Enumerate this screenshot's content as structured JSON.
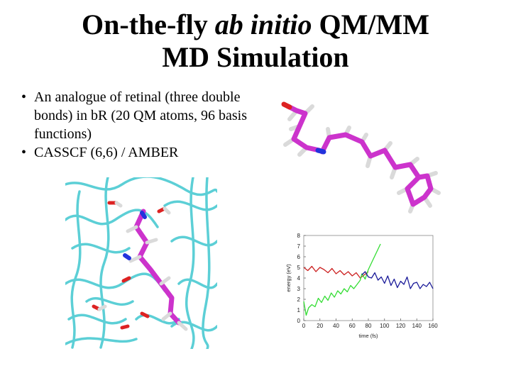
{
  "slide": {
    "title_line1_pre": "On-the-fly ",
    "title_line1_italic": "ab initio",
    "title_line1_post": " QM/MM",
    "title_line2": "MD Simulation",
    "bullets": [
      "An analogue of retinal (three double bonds) in bR (20 QM atoms, 96 basis functions)",
      "CASSCF (6,6) / AMBER"
    ],
    "bullet_symbol": "•"
  },
  "colors": {
    "carbon": "#cc33cc",
    "hydrogen": "#e6e6e6",
    "nitrogen": "#2233dd",
    "oxygen": "#dd2222",
    "protein_ribbon": "#5ccfd6",
    "series_red": "#cc2222",
    "series_green": "#33dd33",
    "series_blue": "#1a1a99"
  },
  "chart_data": {
    "type": "line",
    "title": "",
    "xlabel": "time (fs)",
    "ylabel": "energy (eV)",
    "xlim": [
      0,
      160
    ],
    "ylim": [
      0,
      8
    ],
    "xticks": [
      0,
      20,
      40,
      60,
      80,
      100,
      120,
      140,
      160
    ],
    "yticks": [
      0,
      1,
      2,
      3,
      4,
      5,
      6,
      7,
      8
    ],
    "grid": false,
    "legend": "none",
    "series": [
      {
        "color": "#cc2222",
        "x": [
          0,
          5,
          10,
          15,
          20,
          25,
          30,
          35,
          40,
          45,
          50,
          55,
          60,
          65,
          70,
          75,
          80
        ],
        "y": [
          5.0,
          4.7,
          5.1,
          4.6,
          5.0,
          4.8,
          4.5,
          4.9,
          4.4,
          4.7,
          4.3,
          4.6,
          4.2,
          4.5,
          4.0,
          4.3,
          4.6
        ]
      },
      {
        "color": "#33dd33",
        "x": [
          0,
          3,
          6,
          10,
          14,
          18,
          22,
          26,
          30,
          34,
          38,
          42,
          46,
          50,
          54,
          58,
          62,
          66,
          70,
          72,
          76,
          80,
          85,
          90,
          95
        ],
        "y": [
          1.8,
          0.5,
          1.2,
          1.5,
          1.3,
          2.1,
          1.7,
          2.3,
          1.9,
          2.6,
          2.2,
          2.8,
          2.5,
          3.0,
          2.7,
          3.3,
          3.0,
          3.4,
          3.8,
          4.4,
          3.9,
          4.8,
          5.6,
          6.4,
          7.2
        ]
      },
      {
        "color": "#1a1a99",
        "x": [
          72,
          76,
          80,
          84,
          88,
          92,
          96,
          100,
          104,
          108,
          112,
          116,
          120,
          124,
          128,
          132,
          136,
          140,
          144,
          148,
          152,
          156,
          160
        ],
        "y": [
          4.3,
          4.6,
          4.1,
          4.0,
          4.5,
          3.8,
          4.1,
          3.5,
          4.2,
          3.3,
          3.9,
          3.1,
          3.7,
          3.4,
          4.1,
          3.0,
          3.5,
          3.6,
          3.0,
          3.4,
          3.2,
          3.6,
          3.0
        ]
      }
    ]
  }
}
